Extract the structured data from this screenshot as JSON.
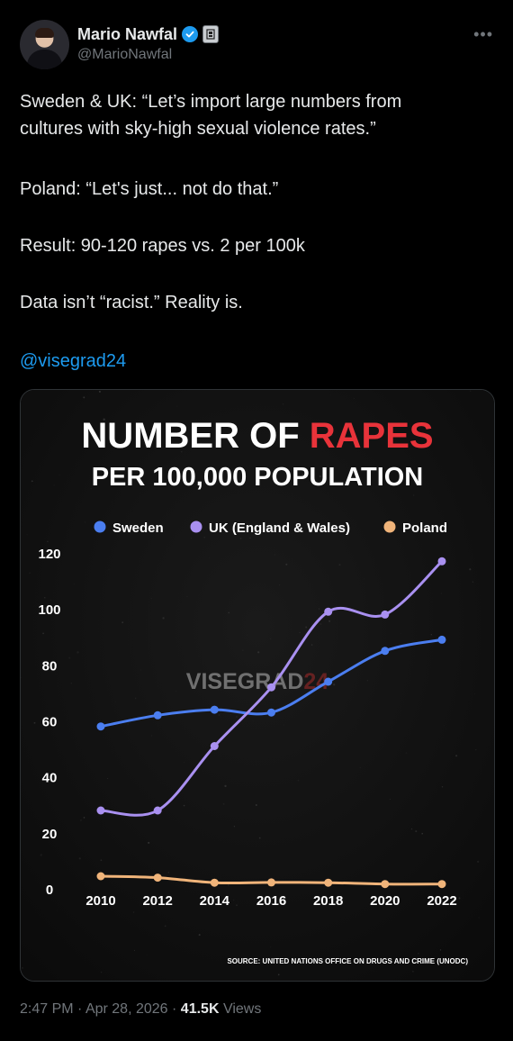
{
  "author": {
    "display_name": "Mario Nawfal",
    "handle": "@MarioNawfal",
    "avatar_icon": "avatar-photo",
    "verified_icon": "verified-badge-icon",
    "affiliate_icon": "affiliate-badge-icon",
    "verified_color": "#1d9bf0"
  },
  "post": {
    "line1": "Sweden & UK: “Let’s import large numbers from",
    "line2": "cultures with sky-high sexual violence rates.”",
    "line3": "Poland: “Let's just... not do that.”",
    "line4": "Result: 90-120 rapes vs. 2 per 100k",
    "line5": "Data isn’t “racist.” Reality is.",
    "mention": "@visegrad24"
  },
  "meta": {
    "time": "2:47 PM",
    "sep1": "·",
    "date": "Apr 28, 2026",
    "sep2": "·",
    "views_count": "41.5K",
    "views_label": "Views"
  },
  "chart_data": {
    "type": "line",
    "title_part1": "NUMBER OF",
    "title_part2": "RAPES",
    "subtitle": "PER 100,000 POPULATION",
    "watermark_part1": "VISEGRAD",
    "watermark_part2": "24",
    "source": "SOURCE: UNITED NATIONS OFFICE ON DRUGS AND CRIME (UNODC)",
    "x": [
      2010,
      2012,
      2014,
      2016,
      2018,
      2020,
      2022
    ],
    "x_tick_labels": [
      "2010",
      "2012",
      "2014",
      "2016",
      "2018",
      "2020",
      "2022"
    ],
    "y_tick_labels": [
      "0",
      "20",
      "40",
      "60",
      "80",
      "100",
      "120"
    ],
    "ylim": [
      0,
      120
    ],
    "legend_position": "top",
    "grid": false,
    "series": [
      {
        "name": "Sweden",
        "color": "#4b7ef0",
        "values": [
          58,
          62,
          64,
          63,
          74,
          85,
          89
        ]
      },
      {
        "name": "UK (England & Wales)",
        "color": "#a990f0",
        "values": [
          28,
          28,
          51,
          72,
          99,
          98,
          117
        ]
      },
      {
        "name": "Poland",
        "color": "#f0b47a",
        "values": [
          4.5,
          4,
          2.2,
          2.3,
          2.2,
          1.7,
          1.7
        ]
      }
    ]
  }
}
